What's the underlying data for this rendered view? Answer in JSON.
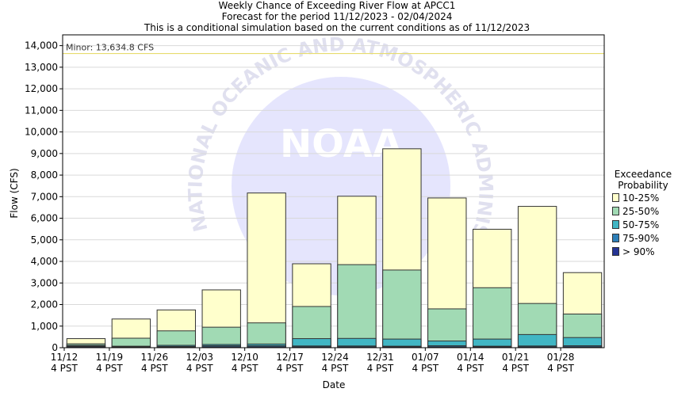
{
  "header": {
    "title": "Weekly Chance of Exceeding River Flow at APCC1",
    "subtitle1": "Forecast for the period 11/12/2023 - 02/04/2024",
    "subtitle2": "This is a conditional simulation based on the current conditions as of 11/12/2023"
  },
  "legend": {
    "title1": "Exceedance",
    "title2": "Probability",
    "items": [
      {
        "label": "10-25%",
        "color": "#ffffcc"
      },
      {
        "label": "25-50%",
        "color": "#a1dab4"
      },
      {
        "label": "50-75%",
        "color": "#41b6c4"
      },
      {
        "label": "75-90%",
        "color": "#2c7fb8"
      },
      {
        "label": "> 90%",
        "color": "#253494"
      }
    ]
  },
  "threshold": {
    "label": "Minor: 13,634.8 CFS",
    "value": 13634.8,
    "color": "#e6dc6e"
  },
  "watermark": {
    "text": "NATIONAL OCEANIC AND ATMOSPHERIC ADMINISTRATION",
    "logo": "NOAA"
  },
  "chart_data": {
    "type": "bar",
    "stacked": true,
    "title": "Weekly Chance of Exceeding River Flow at APCC1",
    "xlabel": "Date",
    "ylabel": "Flow (CFS)",
    "ylim": [
      0,
      14500
    ],
    "yticks": [
      0,
      1000,
      2000,
      3000,
      4000,
      5000,
      6000,
      7000,
      8000,
      9000,
      10000,
      11000,
      12000,
      13000,
      14000
    ],
    "ytick_labels": [
      "0",
      "1,000",
      "2,000",
      "3,000",
      "4,000",
      "5,000",
      "6,000",
      "7,000",
      "8,000",
      "9,000",
      "10,000",
      "11,000",
      "12,000",
      "13,000",
      "14,000"
    ],
    "categories": [
      {
        "top": "11/12",
        "bottom": "4 PST"
      },
      {
        "top": "11/19",
        "bottom": "4 PST"
      },
      {
        "top": "11/26",
        "bottom": "4 PST"
      },
      {
        "top": "12/03",
        "bottom": "4 PST"
      },
      {
        "top": "12/10",
        "bottom": "4 PST"
      },
      {
        "top": "12/17",
        "bottom": "4 PST"
      },
      {
        "top": "12/24",
        "bottom": "4 PST"
      },
      {
        "top": "12/31",
        "bottom": "4 PST"
      },
      {
        "top": "01/07",
        "bottom": "4 PST"
      },
      {
        "top": "01/14",
        "bottom": "4 PST"
      },
      {
        "top": "01/21",
        "bottom": "4 PST"
      },
      {
        "top": "01/28",
        "bottom": "4 PST"
      }
    ],
    "series": [
      {
        "name": "10-25%",
        "color": "#ffffcc",
        "values": [
          420,
          1330,
          1750,
          2680,
          7170,
          3890,
          7020,
          9220,
          6940,
          5490,
          6550,
          3480
        ]
      },
      {
        "name": "25-50%",
        "color": "#a1dab4",
        "values": [
          180,
          440,
          780,
          950,
          1150,
          1910,
          3850,
          3600,
          1800,
          2780,
          2050,
          1560
        ]
      },
      {
        "name": "50-75%",
        "color": "#41b6c4",
        "values": [
          110,
          70,
          110,
          150,
          170,
          420,
          430,
          400,
          310,
          400,
          610,
          470
        ]
      },
      {
        "name": "75-90%",
        "color": "#2c7fb8",
        "values": [
          70,
          40,
          60,
          90,
          90,
          80,
          80,
          70,
          90,
          70,
          80,
          90
        ]
      },
      {
        "name": "> 90%",
        "color": "#253494",
        "values": [
          40,
          20,
          30,
          40,
          40,
          40,
          40,
          40,
          40,
          40,
          40,
          40
        ]
      }
    ],
    "grid": true,
    "legend_position": "right"
  }
}
